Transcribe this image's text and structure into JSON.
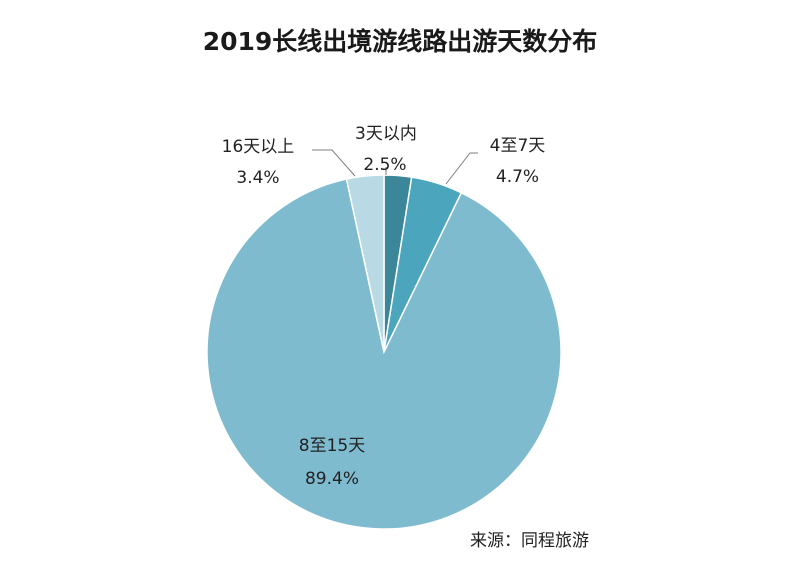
{
  "chart_data": {
    "type": "pie",
    "title": "2019长线出境游线路出游天数分布",
    "slices": [
      {
        "label": "3天以内",
        "value": 2.5,
        "value_text": "2.5%",
        "color": "#3b8799"
      },
      {
        "label": "4至7天",
        "value": 4.7,
        "value_text": "4.7%",
        "color": "#4aa5bd"
      },
      {
        "label": "8至15天",
        "value": 89.4,
        "value_text": "89.4%",
        "color": "#7fbbcf"
      },
      {
        "label": "16天以上",
        "value": 3.4,
        "value_text": "3.4%",
        "color": "#b9dae4"
      }
    ]
  },
  "source": "来源：同程旅游"
}
